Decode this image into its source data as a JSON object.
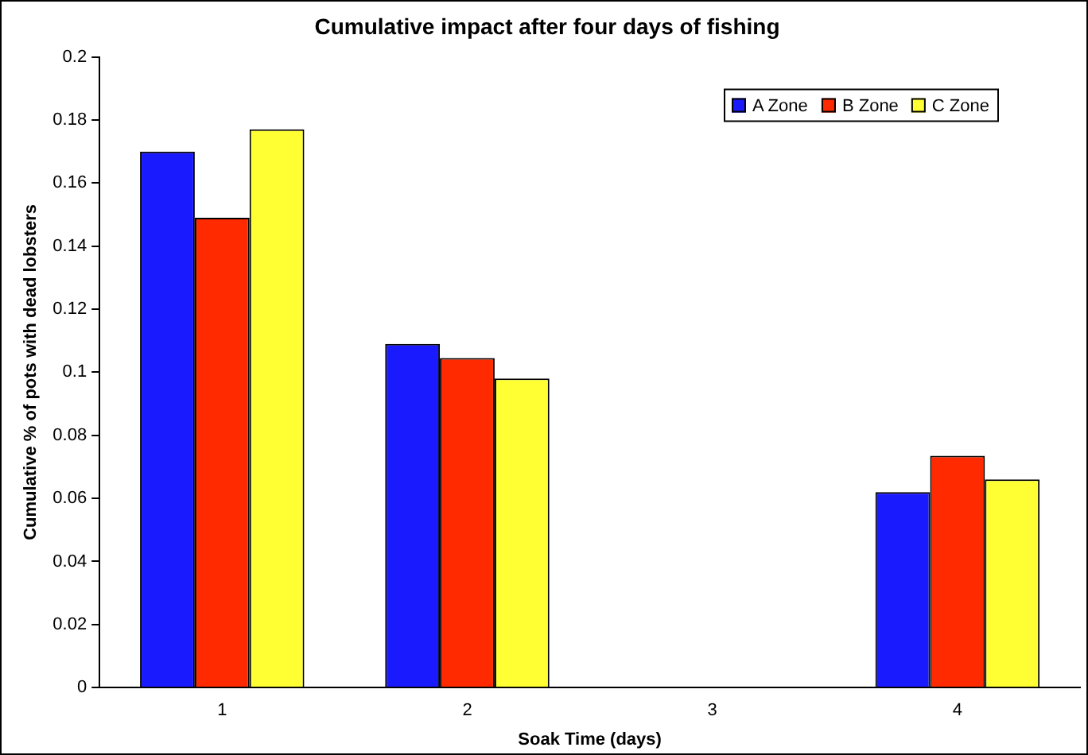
{
  "chart_data": {
    "type": "bar",
    "title": "Cumulative impact after four days of fishing",
    "xlabel": "Soak Time (days)",
    "ylabel": "Cumulative % of pots with dead lobsters",
    "categories": [
      "1",
      "2",
      "3",
      "4"
    ],
    "series": [
      {
        "name": "A Zone",
        "color": "#1a1aff",
        "values": [
          0.17,
          0.109,
          null,
          0.062
        ]
      },
      {
        "name": "B Zone",
        "color": "#ff2a00",
        "values": [
          0.149,
          0.1045,
          null,
          0.0735
        ]
      },
      {
        "name": "C Zone",
        "color": "#ffff33",
        "values": [
          0.177,
          0.098,
          null,
          0.066
        ]
      }
    ],
    "ylim": [
      0,
      0.2
    ],
    "yticks": [
      0,
      0.02,
      0.04,
      0.06,
      0.08,
      0.1,
      0.12,
      0.14,
      0.16,
      0.18,
      0.2
    ],
    "grid": false,
    "legend": "top right"
  }
}
